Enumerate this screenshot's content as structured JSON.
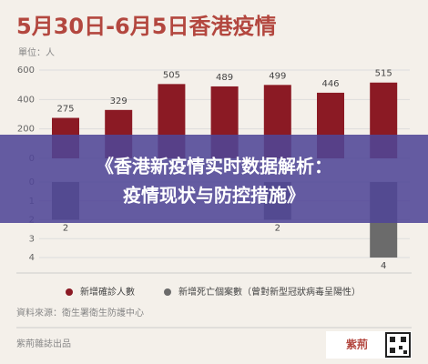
{
  "header": {
    "title": "5月30日-6月5日香港疫情",
    "unit": "單位：人"
  },
  "chart_data": [
    {
      "type": "bar",
      "series": [
        {
          "name": "新增確診人數",
          "color": "#8b1a24",
          "values": [
            275,
            329,
            505,
            489,
            499,
            446,
            515
          ]
        }
      ],
      "ylim": [
        0,
        600
      ],
      "yticks": [
        0,
        200,
        400,
        600
      ],
      "grid": true,
      "inverted": false
    },
    {
      "type": "bar",
      "series": [
        {
          "name": "新增死亡個案數（曾對新型冠狀病毒呈陽性）",
          "color": "#6b6b6b",
          "values": [
            2,
            null,
            null,
            null,
            2,
            null,
            4
          ]
        }
      ],
      "ylim": [
        0,
        4
      ],
      "yticks": [
        0,
        1,
        2,
        3,
        4
      ],
      "grid": true,
      "inverted": true
    }
  ],
  "banner": {
    "lines": [
      "《香港新疫情实时数据解析：",
      "疫情现状与防控措施》"
    ]
  },
  "footer": {
    "source": "資料來源：衛生署衛生防護中心",
    "publisher": "紫荊雜誌出品",
    "logo": "紫荊"
  }
}
